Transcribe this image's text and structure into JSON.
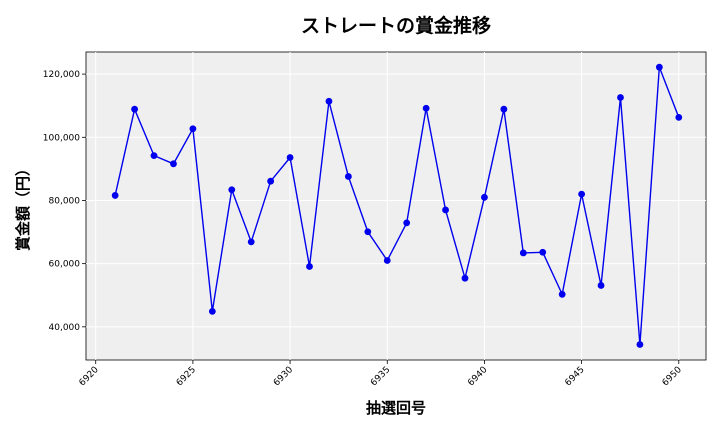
{
  "chart_data": {
    "type": "line",
    "title": "ストレートの賞金推移",
    "xlabel": "抽選回号",
    "ylabel": "賞金額（円）",
    "x": [
      6921,
      6922,
      6923,
      6924,
      6925,
      6926,
      6927,
      6928,
      6929,
      6930,
      6931,
      6932,
      6933,
      6934,
      6935,
      6936,
      6937,
      6938,
      6939,
      6940,
      6941,
      6942,
      6943,
      6944,
      6945,
      6946,
      6947,
      6948,
      6949,
      6950
    ],
    "series": [
      {
        "values": [
          81600,
          108900,
          94200,
          91600,
          102700,
          44900,
          83400,
          66900,
          86100,
          93600,
          59100,
          111400,
          87600,
          70100,
          61000,
          72900,
          109200,
          77000,
          55400,
          81000,
          108900,
          63400,
          63600,
          50300,
          82000,
          53100,
          112600,
          34400,
          122200,
          106300
        ],
        "color": "#0000ee"
      }
    ],
    "xlim": [
      6919.5,
      6951.4
    ],
    "ylim": [
      29500,
      127000
    ],
    "x_ticks": [
      6920,
      6925,
      6930,
      6935,
      6940,
      6945,
      6950
    ],
    "y_ticks": [
      40000,
      60000,
      80000,
      100000,
      120000
    ],
    "x_tick_labels": [
      "6920",
      "6925",
      "6930",
      "6935",
      "6940",
      "6945",
      "6950"
    ],
    "y_tick_labels": [
      "40,000",
      "60,000",
      "80,000",
      "100,000",
      "120,000"
    ],
    "grid": true,
    "plot_background": "#efefef",
    "grid_color": "#ffffff",
    "line_color": "#0000ee",
    "marker_color": "#0000ee"
  }
}
